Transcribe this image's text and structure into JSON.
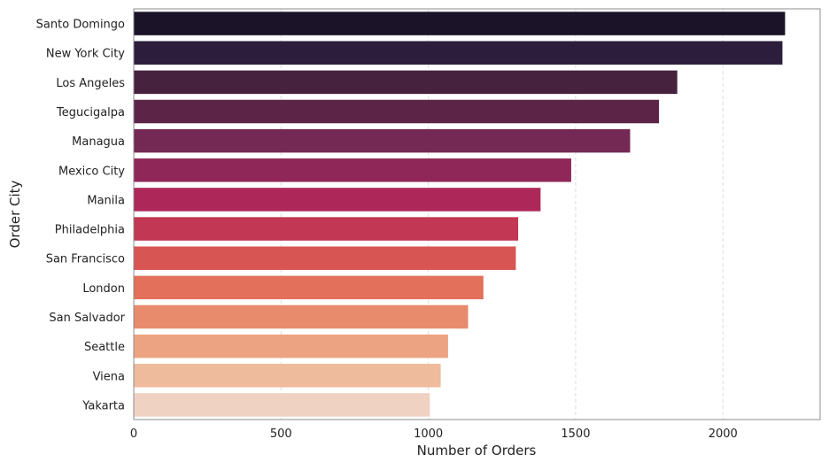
{
  "chart_data": {
    "type": "bar",
    "orientation": "horizontal",
    "xlabel": "Number of Orders",
    "ylabel": "Order City",
    "xlim": [
      0,
      2330
    ],
    "xticks": [
      0,
      500,
      1000,
      1500,
      2000
    ],
    "grid": "x-dashed",
    "categories": [
      "Santo Domingo",
      "New York City",
      "Los Angeles",
      "Tegucigalpa",
      "Managua",
      "Mexico City",
      "Manila",
      "Philadelphia",
      "San Francisco",
      "London",
      "San Salvador",
      "Seattle",
      "Viena",
      "Yakarta"
    ],
    "values": [
      2211,
      2202,
      1845,
      1783,
      1685,
      1485,
      1381,
      1305,
      1297,
      1187,
      1135,
      1067,
      1042,
      1005
    ],
    "colors": [
      "#1b1428",
      "#2d1d3d",
      "#46223f",
      "#5c2548",
      "#742854",
      "#8f2858",
      "#ad2859",
      "#c23753",
      "#d75553",
      "#e2705b",
      "#e88b6c",
      "#eca382",
      "#eebb9c",
      "#f0d2c2"
    ]
  }
}
